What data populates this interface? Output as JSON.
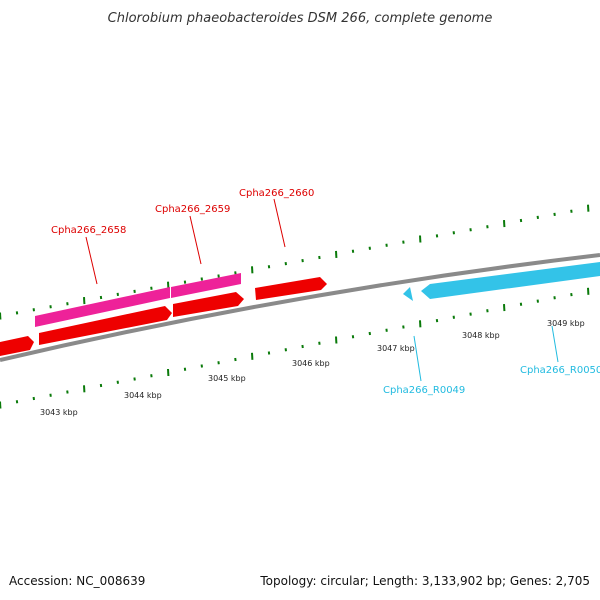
{
  "title": "Chlorobium phaeobacteroides DSM 266, complete genome",
  "footer": {
    "accession": "Accession: NC_008639",
    "summary": "Topology: circular; Length: 3,133,902 bp; Genes: 2,705"
  },
  "colors": {
    "backbone": "#8a8a8a",
    "forward_cds": "#ee0000",
    "gene_track": "#ee2299",
    "rna": "#33c3e8",
    "tick": "#0a7a0a",
    "forward_label": "#dd0000",
    "rna_label": "#22bbe0"
  },
  "kbp_labels": [
    "3043 kbp",
    "3044 kbp",
    "3045 kbp",
    "3046 kbp",
    "3047 kbp",
    "3048 kbp",
    "3049 kbp"
  ],
  "gene_labels": [
    {
      "name": "Cpha266_2658",
      "kind": "forward"
    },
    {
      "name": "Cpha266_2659",
      "kind": "forward"
    },
    {
      "name": "Cpha266_2660",
      "kind": "forward"
    },
    {
      "name": "Cpha266_R0049",
      "kind": "rna"
    },
    {
      "name": "Cpha266_R0050",
      "kind": "rna"
    }
  ]
}
